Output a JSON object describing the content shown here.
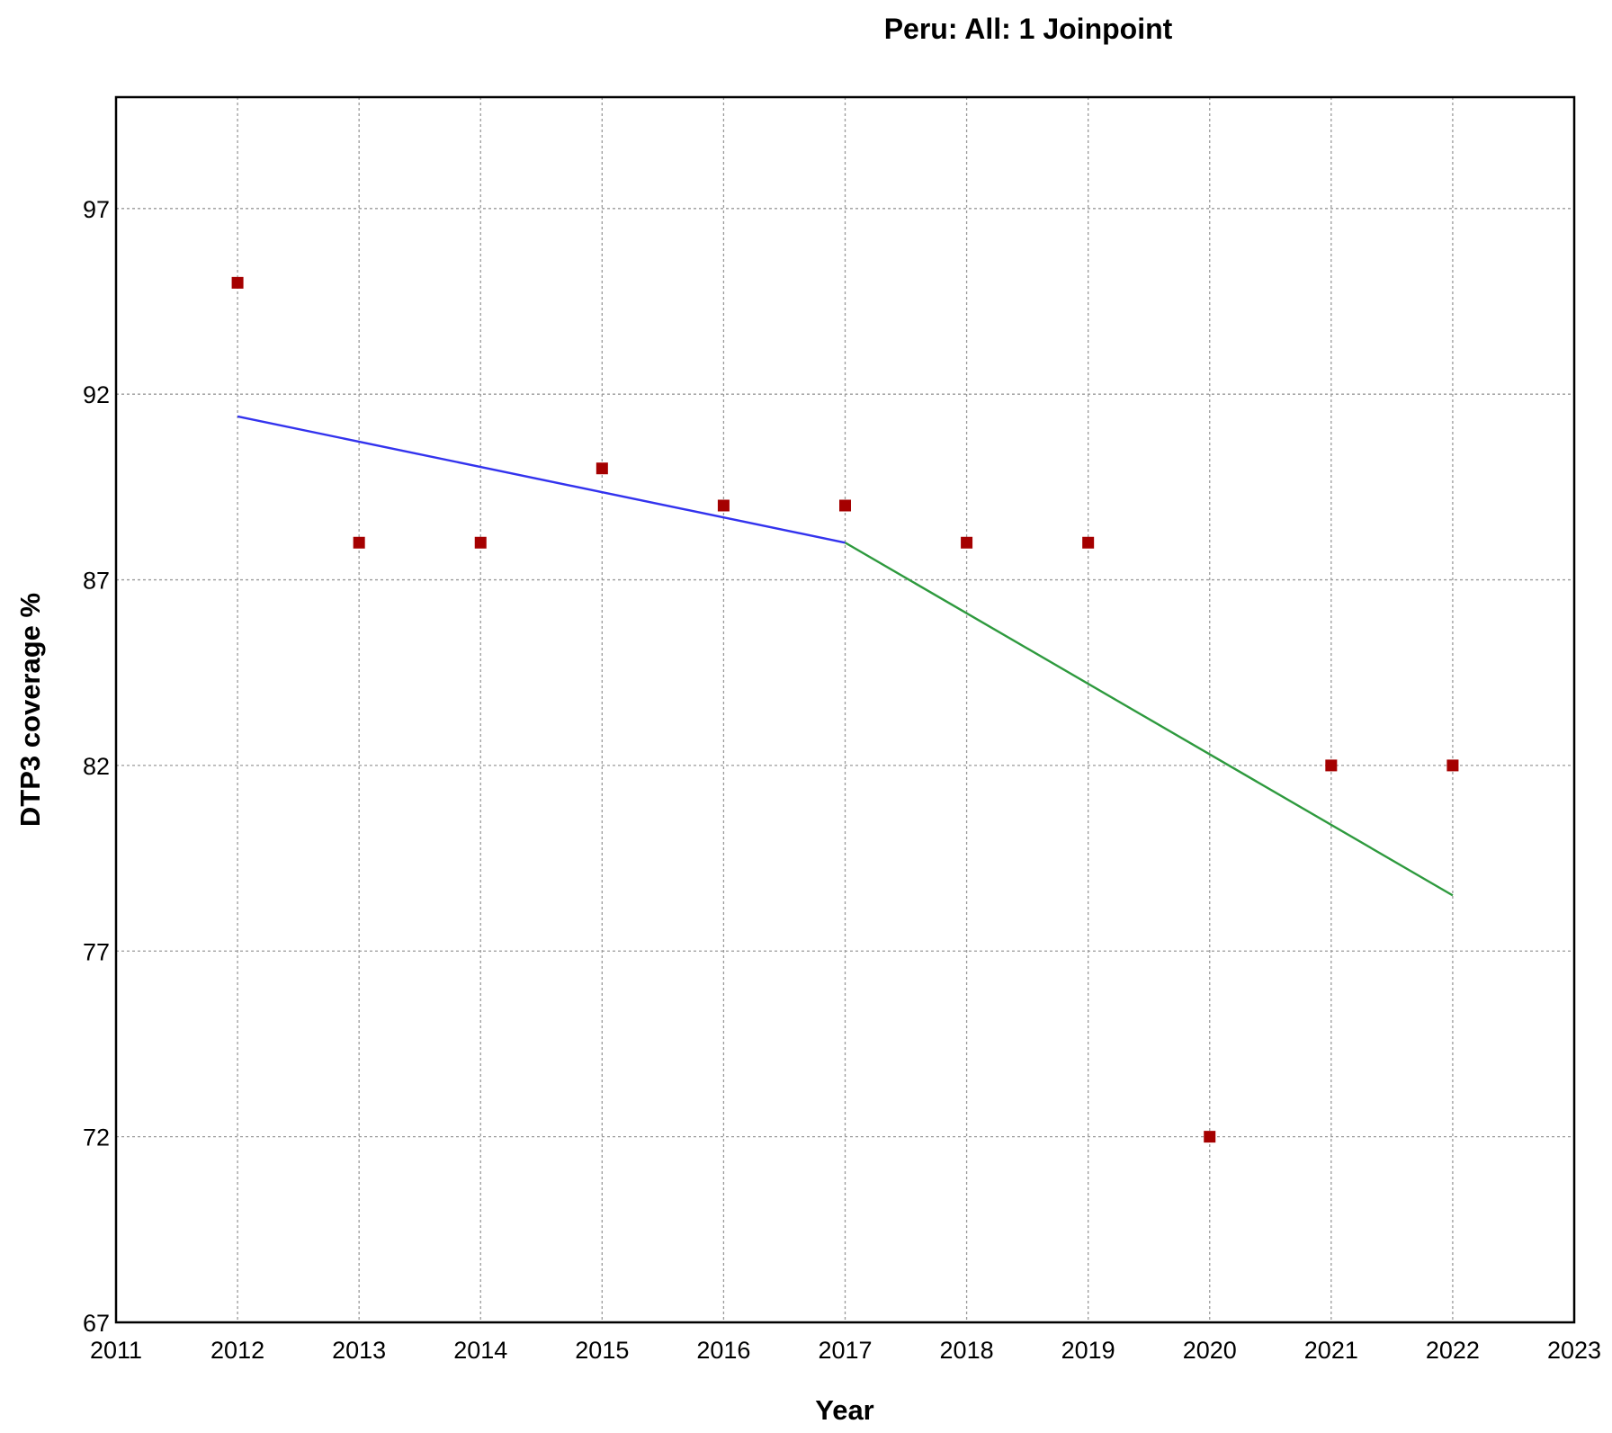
{
  "chart_data": {
    "type": "scatter",
    "title": "Peru: All: 1 Joinpoint",
    "xlabel": "Year",
    "ylabel": "DTP3 coverage %",
    "xlim": [
      2011,
      2023
    ],
    "ylim": [
      67,
      100
    ],
    "x_ticks": [
      2011,
      2012,
      2013,
      2014,
      2015,
      2016,
      2017,
      2018,
      2019,
      2020,
      2021,
      2022,
      2023
    ],
    "y_ticks": [
      67,
      72,
      77,
      82,
      87,
      92,
      97
    ],
    "grid": true,
    "observed": {
      "color": "#a50000",
      "marker": "square",
      "x": [
        2012,
        2013,
        2014,
        2015,
        2016,
        2017,
        2018,
        2019,
        2020,
        2021,
        2022
      ],
      "y": [
        95,
        88,
        88,
        90,
        89,
        89,
        88,
        88,
        72,
        82,
        82
      ]
    },
    "segments": [
      {
        "color": "#3333ee",
        "x": [
          2012,
          2017
        ],
        "y": [
          91.4,
          88.0
        ]
      },
      {
        "color": "#2e9a3e",
        "x": [
          2017,
          2022
        ],
        "y": [
          88.0,
          78.5
        ]
      }
    ]
  }
}
